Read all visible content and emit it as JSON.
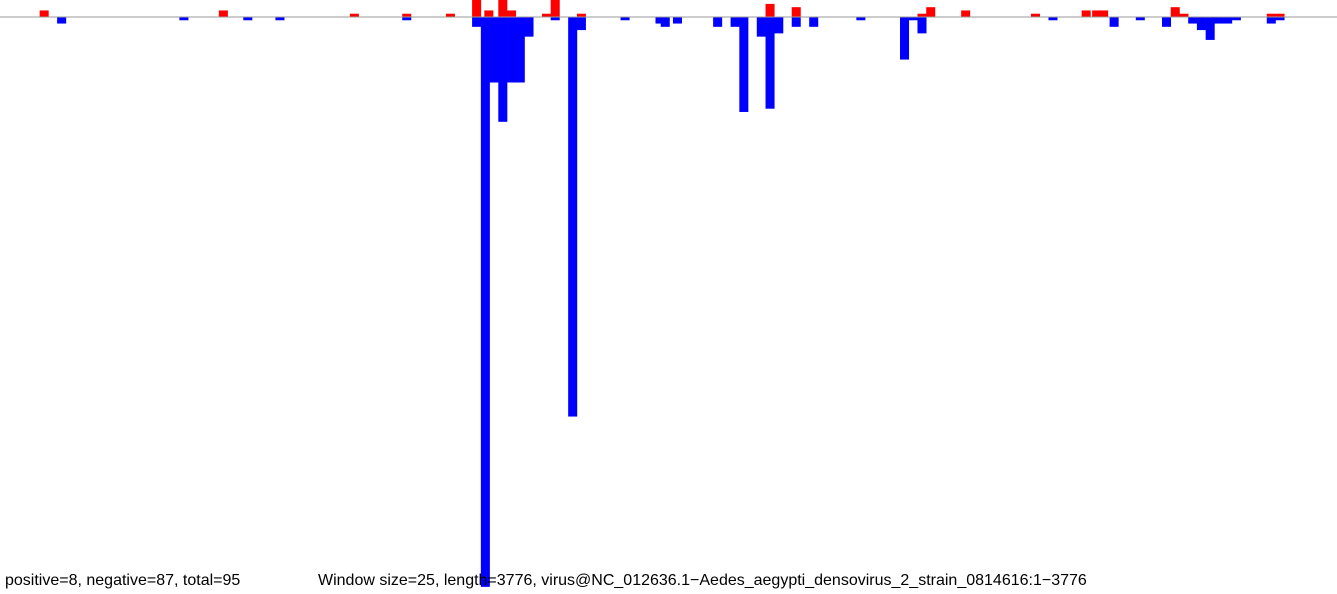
{
  "chart_data": {
    "type": "bar",
    "subtitle_left": "positive=8, negative=87, total=95",
    "subtitle_right": "Window size=25, length=3776, virus@NC_012636.1−Aedes_aegypti_densovirus_2_strain_0814616:1−3776",
    "window_size": 25,
    "length": 3776,
    "xlim": [
      0,
      3776
    ],
    "ylim": [
      -87,
      8
    ],
    "grid": false,
    "legend": "none",
    "colors": {
      "positive": "#ff0000",
      "negative": "#0000ff",
      "baseline": "#999999"
    },
    "series": [
      {
        "name": "positive",
        "x": [
          62,
          575,
          950,
          1100,
          1225,
          1300,
          1335,
          1375,
          1400,
          1500,
          1525,
          1600,
          2140,
          2215,
          2575,
          2600,
          2700,
          2900,
          3045,
          3075,
          3095,
          3300,
          3325,
          3575,
          3600
        ],
        "values": [
          1,
          1,
          0.5,
          0.5,
          0.5,
          4,
          1,
          4,
          1,
          0.5,
          3,
          0.5,
          2,
          1.5,
          0.5,
          1.5,
          1,
          0.5,
          1,
          1,
          1,
          1.5,
          0.5,
          0.5,
          0.5
        ]
      },
      {
        "name": "negative",
        "x": [
          112,
          462,
          645,
          737,
          1100,
          1300,
          1325,
          1350,
          1375,
          1400,
          1425,
          1450,
          1525,
          1575,
          1600,
          1725,
          1825,
          1840,
          1875,
          1990,
          2040,
          2065,
          2115,
          2140,
          2165,
          2215,
          2265,
          2400,
          2525,
          2550,
          2575,
          2950,
          3125,
          3200,
          3275,
          3350,
          3375,
          3400,
          3425,
          3450,
          3475,
          3575,
          3600
        ],
        "values": [
          -1,
          -0.5,
          -0.5,
          -0.5,
          -0.5,
          -1.5,
          -87,
          -10,
          -16,
          -10,
          -10,
          -3,
          -0.5,
          -61,
          -2,
          -0.5,
          -1,
          -1.5,
          -1,
          -1.5,
          -1.5,
          -14.5,
          -3,
          -14,
          -2.5,
          -1.5,
          -1.5,
          -0.5,
          -6.5,
          -0.5,
          -2.5,
          -0.5,
          -1.5,
          -0.5,
          -1.5,
          -1,
          -2,
          -3.5,
          -1,
          -1,
          -0.5,
          -1,
          -0.5
        ]
      }
    ]
  }
}
